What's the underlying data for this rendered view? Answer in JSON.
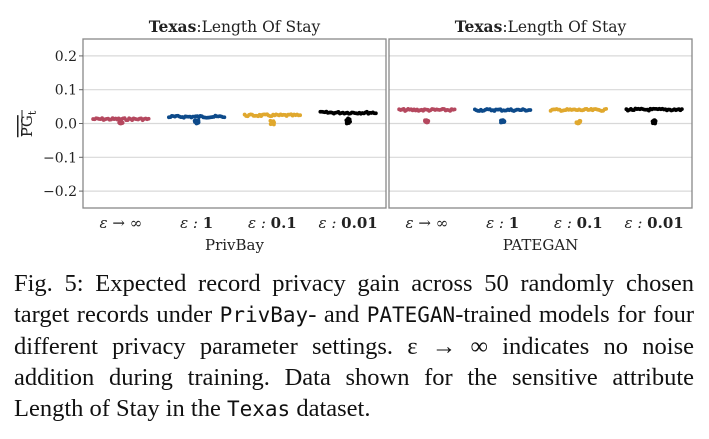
{
  "chart_data": [
    {
      "type": "scatter",
      "title_bold": "Texas",
      "title_rest": ":Length Of Stay",
      "xlabel": "PrivBay",
      "ylabel": "PG",
      "ylabel_sub": "t",
      "ylim": [
        -0.25,
        0.25
      ],
      "yticks": [
        "0.2",
        "0.1",
        "0.0",
        "−0.1",
        "−0.2"
      ],
      "ytick_values": [
        0.2,
        0.1,
        0.0,
        -0.1,
        -0.2
      ],
      "grid": true,
      "categories": [
        {
          "prefix": "ε → ∞",
          "value": ""
        },
        {
          "prefix": "ε : ",
          "value": "1"
        },
        {
          "prefix": "ε : ",
          "value": "0.1"
        },
        {
          "prefix": "ε : ",
          "value": "0.01"
        }
      ],
      "series": [
        {
          "color": "#b5485f",
          "center": 0.013,
          "spread": 0.003,
          "tail": [
            0.004,
            0.0
          ]
        },
        {
          "color": "#0d4a8a",
          "center": 0.02,
          "spread": 0.004,
          "tail": [
            0.01,
            0.0
          ]
        },
        {
          "color": "#e0a82e",
          "center": 0.024,
          "spread": 0.004,
          "tail": [
            0.008,
            -0.003
          ]
        },
        {
          "color": "#000000",
          "center": 0.032,
          "spread": 0.003,
          "tail": [
            0.015,
            0.0
          ]
        }
      ]
    },
    {
      "type": "scatter",
      "title_bold": "Texas",
      "title_rest": ":Length Of Stay",
      "xlabel": "PATEGAN",
      "ylim": [
        -0.25,
        0.25
      ],
      "grid": true,
      "categories": [
        {
          "prefix": "ε → ∞",
          "value": ""
        },
        {
          "prefix": "ε : ",
          "value": "1"
        },
        {
          "prefix": "ε : ",
          "value": "0.1"
        },
        {
          "prefix": "ε : ",
          "value": "0.01"
        }
      ],
      "series": [
        {
          "color": "#b5485f",
          "center": 0.04,
          "spread": 0.004,
          "tail": [
            0.01,
            0.003
          ]
        },
        {
          "color": "#0d4a8a",
          "center": 0.04,
          "spread": 0.004,
          "tail": [
            0.01,
            0.003
          ]
        },
        {
          "color": "#e0a82e",
          "center": 0.04,
          "spread": 0.004,
          "tail": [
            0.008,
            0.0
          ]
        },
        {
          "color": "#000000",
          "center": 0.041,
          "spread": 0.004,
          "tail": [
            0.01,
            0.0
          ]
        }
      ]
    }
  ],
  "caption": {
    "p1": "Fig. 5: Expected record privacy gain across 50 randomly chosen target records under ",
    "m1": "PrivBay",
    "p2": "- and ",
    "m2": "PATEGAN",
    "p3": "-trained models for four different privacy parameter settings. ε → ∞ indicates no noise addition during training. Data shown for the sensitive attribute Length of Stay in the ",
    "m3": "Texas",
    "p4": " dataset."
  }
}
